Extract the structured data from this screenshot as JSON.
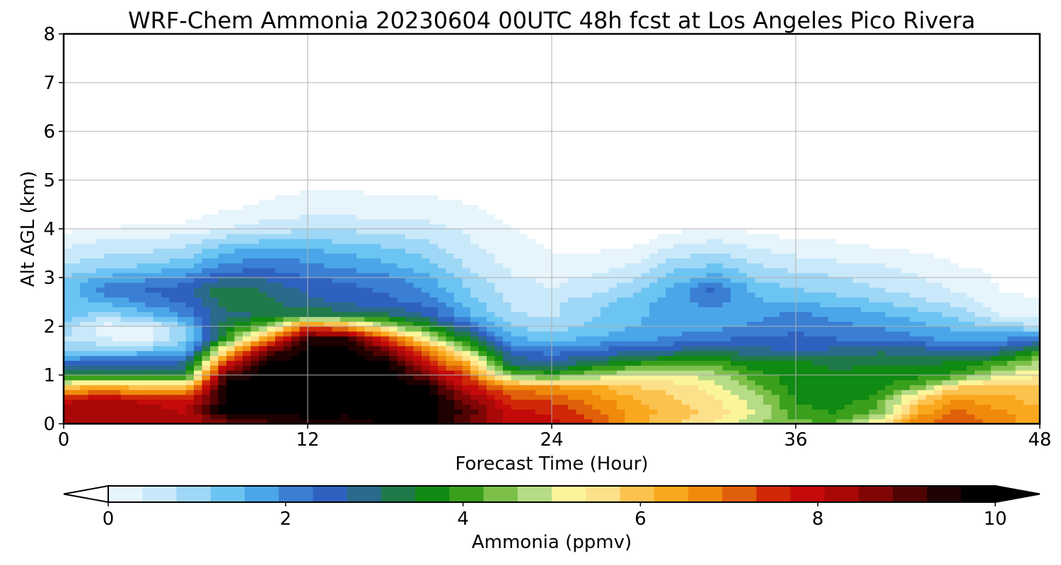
{
  "chart_data": {
    "type": "heatmap",
    "title": "WRF-Chem Ammonia  20230604 00UTC 48h fcst at Los Angeles Pico Rivera",
    "xlabel": "Forecast Time (Hour)",
    "ylabel": "Alt AGL (km)",
    "xlim": [
      0,
      48
    ],
    "ylim": [
      0,
      8
    ],
    "xticks": [
      "0",
      "12",
      "24",
      "36",
      "48"
    ],
    "yticks": [
      "0",
      "1",
      "2",
      "3",
      "4",
      "5",
      "6",
      "7",
      "8"
    ],
    "grid": true,
    "colorbar": {
      "label": "Ammonia  (ppmv)",
      "min": 0,
      "max": 10,
      "ticks": [
        "0",
        "2",
        "4",
        "6",
        "8",
        "10"
      ],
      "extend": "both",
      "colors": [
        "#ffffff",
        "#e6f4fc",
        "#c9e9fa",
        "#9fd7f6",
        "#6cc4f2",
        "#4aa6e8",
        "#3a7fd4",
        "#2f62c0",
        "#2a6a8a",
        "#1f7a4a",
        "#0f8a12",
        "#3aa01c",
        "#7cc04a",
        "#b6dc86",
        "#fbf59a",
        "#fde08a",
        "#fcc24e",
        "#f9a81e",
        "#f08a0c",
        "#e0600a",
        "#d02808",
        "#c40a0a",
        "#a80808",
        "#800606",
        "#500303",
        "#1e0101",
        "#000000"
      ]
    },
    "x_hours": [
      0,
      2,
      4,
      6,
      8,
      10,
      12,
      14,
      16,
      18,
      20,
      22,
      24,
      26,
      28,
      30,
      32,
      34,
      36,
      38,
      40,
      42,
      44,
      46,
      48
    ],
    "z_levels_km": [
      0,
      0.25,
      0.5,
      0.75,
      1,
      1.25,
      1.5,
      1.75,
      2,
      2.25,
      2.5,
      2.75,
      3,
      3.25,
      3.5,
      3.75,
      4,
      4.25,
      4.5,
      5,
      6,
      7,
      8
    ],
    "ammonia_ppmv": [
      [
        8.5,
        8.6,
        8.6,
        8.4,
        8.8,
        9.3,
        9.6,
        9.5,
        10.0,
        10.0,
        9.0,
        8.2,
        8.0,
        7.5,
        6.5,
        6.0,
        5.5,
        4.8,
        4.5,
        4.5,
        5.5,
        7.0,
        7.5,
        7.0,
        6.5
      ],
      [
        8.4,
        8.5,
        8.5,
        8.2,
        10.0,
        10.0,
        10.0,
        10.0,
        10.0,
        10.0,
        9.2,
        8.0,
        7.8,
        7.3,
        6.6,
        6.2,
        5.8,
        5.2,
        4.2,
        4.0,
        4.5,
        6.5,
        7.2,
        6.8,
        6.4
      ],
      [
        8.2,
        8.3,
        8.2,
        8.0,
        10.0,
        10.0,
        10.0,
        10.0,
        10.0,
        10.0,
        8.8,
        7.6,
        7.4,
        7.0,
        6.4,
        6.0,
        5.6,
        5.0,
        4.0,
        3.8,
        4.2,
        6.0,
        6.8,
        6.5,
        6.2
      ],
      [
        6.3,
        6.4,
        6.3,
        6.2,
        10.0,
        10.0,
        10.0,
        10.0,
        10.0,
        9.8,
        8.0,
        7.0,
        6.8,
        6.5,
        6.0,
        5.8,
        5.4,
        4.6,
        3.9,
        3.7,
        3.9,
        4.6,
        6.0,
        6.2,
        6.0
      ],
      [
        3.5,
        3.6,
        3.6,
        3.7,
        9.5,
        10.0,
        10.0,
        10.0,
        10.0,
        9.0,
        7.2,
        4.5,
        4.2,
        4.8,
        5.2,
        5.3,
        5.0,
        4.2,
        3.8,
        3.7,
        3.8,
        3.9,
        4.2,
        5.2,
        5.5
      ],
      [
        2.6,
        2.7,
        2.8,
        2.9,
        7.8,
        10.0,
        10.0,
        10.0,
        9.8,
        8.0,
        6.2,
        3.2,
        3.0,
        3.5,
        4.0,
        4.3,
        4.2,
        3.8,
        3.7,
        3.6,
        3.6,
        3.6,
        3.7,
        4.2,
        5.0
      ],
      [
        1.3,
        1.4,
        1.5,
        1.8,
        6.0,
        9.0,
        10.0,
        10.0,
        9.0,
        7.0,
        4.8,
        2.6,
        2.3,
        2.5,
        2.8,
        3.0,
        3.2,
        3.0,
        2.9,
        3.0,
        3.2,
        3.1,
        2.8,
        3.0,
        4.0
      ],
      [
        1.0,
        0.6,
        0.5,
        1.2,
        4.0,
        6.8,
        9.5,
        9.6,
        7.5,
        5.2,
        3.5,
        1.8,
        1.6,
        1.8,
        2.0,
        2.2,
        2.4,
        2.6,
        2.6,
        2.5,
        2.4,
        2.2,
        2.0,
        2.0,
        2.4
      ],
      [
        1.2,
        0.4,
        0.4,
        1.5,
        3.6,
        4.6,
        7.5,
        6.5,
        5.0,
        3.8,
        2.6,
        1.3,
        1.2,
        1.4,
        1.7,
        1.9,
        2.0,
        2.2,
        2.4,
        2.2,
        2.1,
        1.9,
        1.6,
        1.3,
        1.0
      ],
      [
        1.6,
        1.2,
        1.6,
        2.2,
        3.2,
        3.3,
        3.6,
        3.5,
        3.3,
        2.8,
        1.8,
        1.0,
        0.9,
        1.3,
        1.7,
        1.8,
        1.9,
        2.0,
        2.2,
        2.0,
        1.8,
        1.5,
        1.2,
        0.6,
        0.3
      ],
      [
        1.5,
        1.8,
        2.2,
        2.6,
        3.4,
        3.4,
        3.0,
        2.8,
        2.6,
        2.3,
        1.5,
        0.9,
        0.9,
        1.2,
        1.6,
        1.9,
        2.3,
        1.8,
        1.7,
        1.6,
        1.4,
        1.1,
        0.8,
        0.4,
        0.2
      ],
      [
        1.4,
        2.4,
        2.5,
        2.8,
        3.6,
        3.2,
        2.8,
        2.6,
        2.4,
        2.0,
        1.3,
        0.8,
        0.6,
        0.8,
        1.2,
        1.8,
        2.6,
        1.6,
        1.4,
        1.2,
        1.0,
        0.8,
        0.5,
        0.2,
        0.1
      ],
      [
        1.3,
        1.8,
        2.0,
        2.2,
        2.8,
        2.8,
        2.5,
        2.4,
        2.2,
        1.8,
        1.1,
        0.6,
        0.5,
        0.6,
        0.9,
        1.5,
        1.9,
        1.3,
        1.1,
        1.0,
        0.8,
        0.6,
        0.4,
        0.15,
        0.05
      ],
      [
        1.0,
        1.2,
        1.4,
        1.6,
        2.2,
        2.4,
        2.2,
        2.0,
        1.8,
        1.5,
        0.9,
        0.5,
        0.3,
        0.4,
        0.6,
        1.2,
        1.4,
        1.0,
        0.8,
        0.7,
        0.6,
        0.4,
        0.2,
        0.1,
        0.0
      ],
      [
        0.7,
        0.9,
        1.0,
        1.2,
        1.8,
        2.0,
        1.9,
        1.7,
        1.5,
        1.2,
        0.7,
        0.4,
        0.2,
        0.2,
        0.3,
        0.8,
        1.0,
        0.7,
        0.5,
        0.4,
        0.3,
        0.2,
        0.1,
        0.05,
        0.0
      ],
      [
        0.4,
        0.6,
        0.7,
        0.8,
        1.2,
        1.4,
        1.4,
        1.3,
        1.2,
        1.0,
        0.6,
        0.3,
        0.1,
        0.1,
        0.1,
        0.4,
        0.6,
        0.4,
        0.2,
        0.2,
        0.1,
        0.1,
        0.05,
        0.0,
        0.0
      ],
      [
        0.1,
        0.2,
        0.3,
        0.3,
        0.6,
        0.8,
        0.9,
        0.9,
        0.8,
        0.7,
        0.5,
        0.2,
        0.05,
        0.0,
        0.0,
        0.1,
        0.2,
        0.1,
        0.05,
        0.0,
        0.0,
        0.0,
        0.0,
        0.0,
        0.0
      ],
      [
        0.0,
        0.0,
        0.1,
        0.1,
        0.3,
        0.5,
        0.6,
        0.6,
        0.5,
        0.5,
        0.35,
        0.1,
        0.0,
        0.0,
        0.0,
        0.0,
        0.05,
        0.0,
        0.0,
        0.0,
        0.0,
        0.0,
        0.0,
        0.0,
        0.0
      ],
      [
        0.0,
        0.0,
        0.0,
        0.0,
        0.1,
        0.25,
        0.35,
        0.35,
        0.3,
        0.3,
        0.2,
        0.05,
        0.0,
        0.0,
        0.0,
        0.0,
        0.0,
        0.0,
        0.0,
        0.0,
        0.0,
        0.0,
        0.0,
        0.0,
        0.0
      ],
      [
        0.0,
        0.0,
        0.0,
        0.0,
        0.0,
        0.0,
        0.05,
        0.05,
        0.05,
        0.0,
        0.0,
        0.0,
        0.0,
        0.0,
        0.0,
        0.0,
        0.0,
        0.0,
        0.0,
        0.0,
        0.0,
        0.0,
        0.0,
        0.0,
        0.0
      ],
      [
        0.0,
        0.0,
        0.0,
        0.0,
        0.0,
        0.0,
        0.0,
        0.0,
        0.0,
        0.0,
        0.0,
        0.0,
        0.0,
        0.0,
        0.0,
        0.0,
        0.0,
        0.0,
        0.0,
        0.0,
        0.0,
        0.0,
        0.0,
        0.0,
        0.0
      ],
      [
        0.0,
        0.0,
        0.0,
        0.0,
        0.0,
        0.0,
        0.0,
        0.0,
        0.0,
        0.0,
        0.0,
        0.0,
        0.0,
        0.0,
        0.0,
        0.0,
        0.0,
        0.0,
        0.0,
        0.0,
        0.0,
        0.0,
        0.0,
        0.0,
        0.0
      ],
      [
        0.0,
        0.0,
        0.0,
        0.0,
        0.0,
        0.0,
        0.0,
        0.0,
        0.0,
        0.0,
        0.0,
        0.0,
        0.0,
        0.0,
        0.0,
        0.0,
        0.0,
        0.0,
        0.0,
        0.0,
        0.0,
        0.0,
        0.0,
        0.0,
        0.0
      ]
    ]
  }
}
